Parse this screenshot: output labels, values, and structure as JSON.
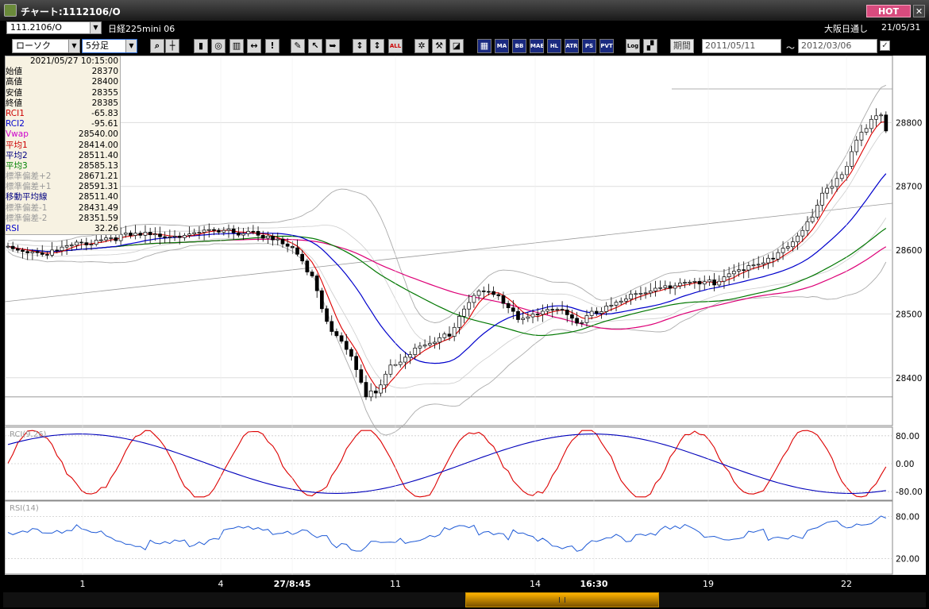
{
  "window": {
    "title": "チャート:1112106/O",
    "hot_label": "HOT",
    "close_label": "✕"
  },
  "toolbar1": {
    "symbol_value": "111.2106/O",
    "market_label": "日経225mini 06",
    "session_label": "大阪日通し",
    "date_label": "21/05/31"
  },
  "toolbar2": {
    "chart_type": "ローソク",
    "interval": "5分足",
    "buttons": [
      "search",
      "crosshair",
      "candle-style",
      "zoom",
      "bar-fit",
      "line-draw",
      "info",
      "pen",
      "cursor",
      "arrow",
      "fit-a",
      "fit-b",
      "all",
      "settings",
      "tool",
      "palette",
      "indicators"
    ],
    "btn_all": "ALL",
    "btn_ma": "MA",
    "btn_bb": "BB",
    "btn_mae": "MAE",
    "btn_hl": "HL",
    "btn_atr": "ATR",
    "btn_ps": "PS",
    "btn_pvt": "PVT",
    "btn_log": "Log",
    "period_label": "期間",
    "date_from": "2011/05/11",
    "tilde": "～",
    "date_to": "2012/03/06"
  },
  "info_panel": {
    "datetime": "2021/05/27  10:15:00",
    "rows": [
      {
        "label": "始値",
        "value": "28370",
        "color": "#000000"
      },
      {
        "label": "高値",
        "value": "28400",
        "color": "#000000"
      },
      {
        "label": "安値",
        "value": "28355",
        "color": "#000000"
      },
      {
        "label": "終値",
        "value": "28385",
        "color": "#000000"
      },
      {
        "label": "RCI1",
        "value": "-65.83",
        "color": "#cc0000"
      },
      {
        "label": "RCI2",
        "value": "-95.61",
        "color": "#0000cc"
      },
      {
        "label": "Vwap",
        "value": "28540.00",
        "color": "#cc00cc"
      },
      {
        "label": "平均1",
        "value": "28414.00",
        "color": "#cc0000"
      },
      {
        "label": "平均2",
        "value": "28511.40",
        "color": "#000080"
      },
      {
        "label": "平均3",
        "value": "28585.13",
        "color": "#008000"
      },
      {
        "label": "標準偏差+2",
        "value": "28671.21",
        "color": "#999999"
      },
      {
        "label": "標準偏差+1",
        "value": "28591.31",
        "color": "#999999"
      },
      {
        "label": "移動平均線",
        "value": "28511.40",
        "color": "#000080"
      },
      {
        "label": "標準偏差-1",
        "value": "28431.49",
        "color": "#999999"
      },
      {
        "label": "標準偏差-2",
        "value": "28351.59",
        "color": "#999999"
      },
      {
        "label": "RSI",
        "value": "32.26",
        "color": "#0000cc"
      }
    ]
  },
  "chart_data": [
    {
      "type": "candlestick",
      "y_ticks": [
        "28800",
        "28700",
        "28600",
        "28500",
        "28400"
      ],
      "x_ticks": [
        "1",
        "4",
        "27/8:45",
        "11",
        "14",
        "16:30",
        "19",
        "22"
      ],
      "ylim": [
        28330,
        28900
      ],
      "series": [
        {
          "name": "平均1",
          "color": "#dd0000"
        },
        {
          "name": "平均2",
          "color": "#0000cc"
        },
        {
          "name": "平均3",
          "color": "#007700"
        },
        {
          "name": "Vwap",
          "color": "#dd0077"
        },
        {
          "name": "標準偏差±2",
          "color": "#999999"
        }
      ]
    },
    {
      "type": "line",
      "title": "RCI(9,26)",
      "y_ticks": [
        "80.00",
        "0.00",
        "-80.00"
      ],
      "series": [
        {
          "name": "RCI1",
          "color": "#dd0000"
        },
        {
          "name": "RCI2",
          "color": "#0000bb"
        }
      ]
    },
    {
      "type": "line",
      "title": "RSI(14)",
      "y_ticks": [
        "80.00",
        "20.00"
      ],
      "series": [
        {
          "name": "RSI",
          "color": "#1e5ad6"
        }
      ]
    }
  ]
}
